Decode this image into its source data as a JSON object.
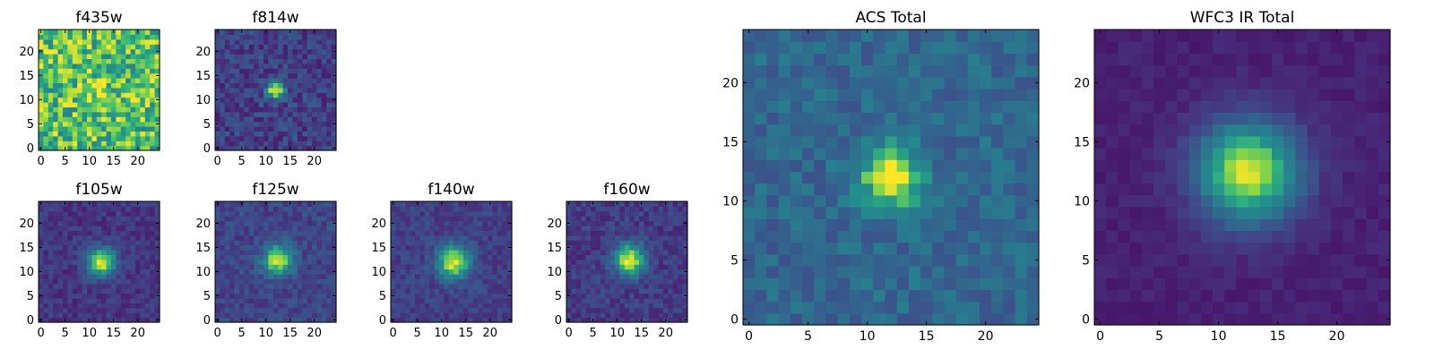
{
  "figure": {
    "description_free": true
  },
  "chart_data": [
    {
      "type": "heatmap",
      "title": "f435w",
      "colormap": "viridis",
      "grid": false,
      "xlim": [
        0,
        24
      ],
      "ylim": [
        0,
        24
      ],
      "xticks": [
        0,
        5,
        10,
        15,
        20
      ],
      "yticks": [
        0,
        5,
        10,
        15,
        20
      ],
      "source_center": [
        12,
        12
      ],
      "source_peak": 0.12,
      "source_sigma": 2.0,
      "background": 0.78,
      "noise": 0.22,
      "seed": 11
    },
    {
      "type": "heatmap",
      "title": "f814w",
      "colormap": "viridis",
      "grid": false,
      "xlim": [
        0,
        24
      ],
      "ylim": [
        0,
        24
      ],
      "xticks": [
        0,
        5,
        10,
        15,
        20
      ],
      "yticks": [
        0,
        5,
        10,
        15,
        20
      ],
      "source_center": [
        12,
        12
      ],
      "source_peak": 0.78,
      "source_sigma": 1.3,
      "background": 0.24,
      "noise": 0.14,
      "seed": 23
    },
    {
      "type": "heatmap",
      "title": "f105w",
      "colormap": "viridis",
      "grid": false,
      "xlim": [
        0,
        24
      ],
      "ylim": [
        0,
        24
      ],
      "xticks": [
        0,
        5,
        10,
        15,
        20
      ],
      "yticks": [
        0,
        5,
        10,
        15,
        20
      ],
      "source_center": [
        12.5,
        12
      ],
      "source_peak": 0.78,
      "source_sigma": 2.1,
      "background": 0.2,
      "noise": 0.09,
      "seed": 37
    },
    {
      "type": "heatmap",
      "title": "f125w",
      "colormap": "viridis",
      "grid": false,
      "xlim": [
        0,
        24
      ],
      "ylim": [
        0,
        24
      ],
      "xticks": [
        0,
        5,
        10,
        15,
        20
      ],
      "yticks": [
        0,
        5,
        10,
        15,
        20
      ],
      "source_center": [
        12.5,
        12.5
      ],
      "source_peak": 0.7,
      "source_sigma": 2.2,
      "background": 0.26,
      "noise": 0.1,
      "seed": 41
    },
    {
      "type": "heatmap",
      "title": "f140w",
      "colormap": "viridis",
      "grid": false,
      "xlim": [
        0,
        24
      ],
      "ylim": [
        0,
        24
      ],
      "xticks": [
        0,
        5,
        10,
        15,
        20
      ],
      "yticks": [
        0,
        5,
        10,
        15,
        20
      ],
      "source_center": [
        12.5,
        12
      ],
      "source_peak": 0.74,
      "source_sigma": 2.4,
      "background": 0.24,
      "noise": 0.09,
      "seed": 53
    },
    {
      "type": "heatmap",
      "title": "f160w",
      "colormap": "viridis",
      "grid": false,
      "xlim": [
        0,
        24
      ],
      "ylim": [
        0,
        24
      ],
      "xticks": [
        0,
        5,
        10,
        15,
        20
      ],
      "yticks": [
        0,
        5,
        10,
        15,
        20
      ],
      "source_center": [
        12.5,
        12.5
      ],
      "source_peak": 0.76,
      "source_sigma": 2.3,
      "background": 0.22,
      "noise": 0.1,
      "seed": 67
    },
    {
      "type": "heatmap",
      "title": "ACS Total",
      "colormap": "viridis",
      "grid": false,
      "xlim": [
        0,
        24
      ],
      "ylim": [
        0,
        24
      ],
      "xticks": [
        0,
        5,
        10,
        15,
        20
      ],
      "yticks": [
        0,
        5,
        10,
        15,
        20
      ],
      "source_center": [
        12,
        12
      ],
      "source_peak": 0.62,
      "source_sigma": 1.8,
      "background": 0.42,
      "noise": 0.11,
      "seed": 79
    },
    {
      "type": "heatmap",
      "title": "WFC3 IR Total",
      "colormap": "viridis",
      "grid": false,
      "xlim": [
        0,
        24
      ],
      "ylim": [
        0,
        24
      ],
      "xticks": [
        0,
        5,
        10,
        15,
        20
      ],
      "yticks": [
        0,
        5,
        10,
        15,
        20
      ],
      "source_center": [
        12.5,
        12.5
      ],
      "source_peak": 0.85,
      "source_sigma": 3.0,
      "background": 0.12,
      "noise": 0.04,
      "seed": 97
    }
  ]
}
